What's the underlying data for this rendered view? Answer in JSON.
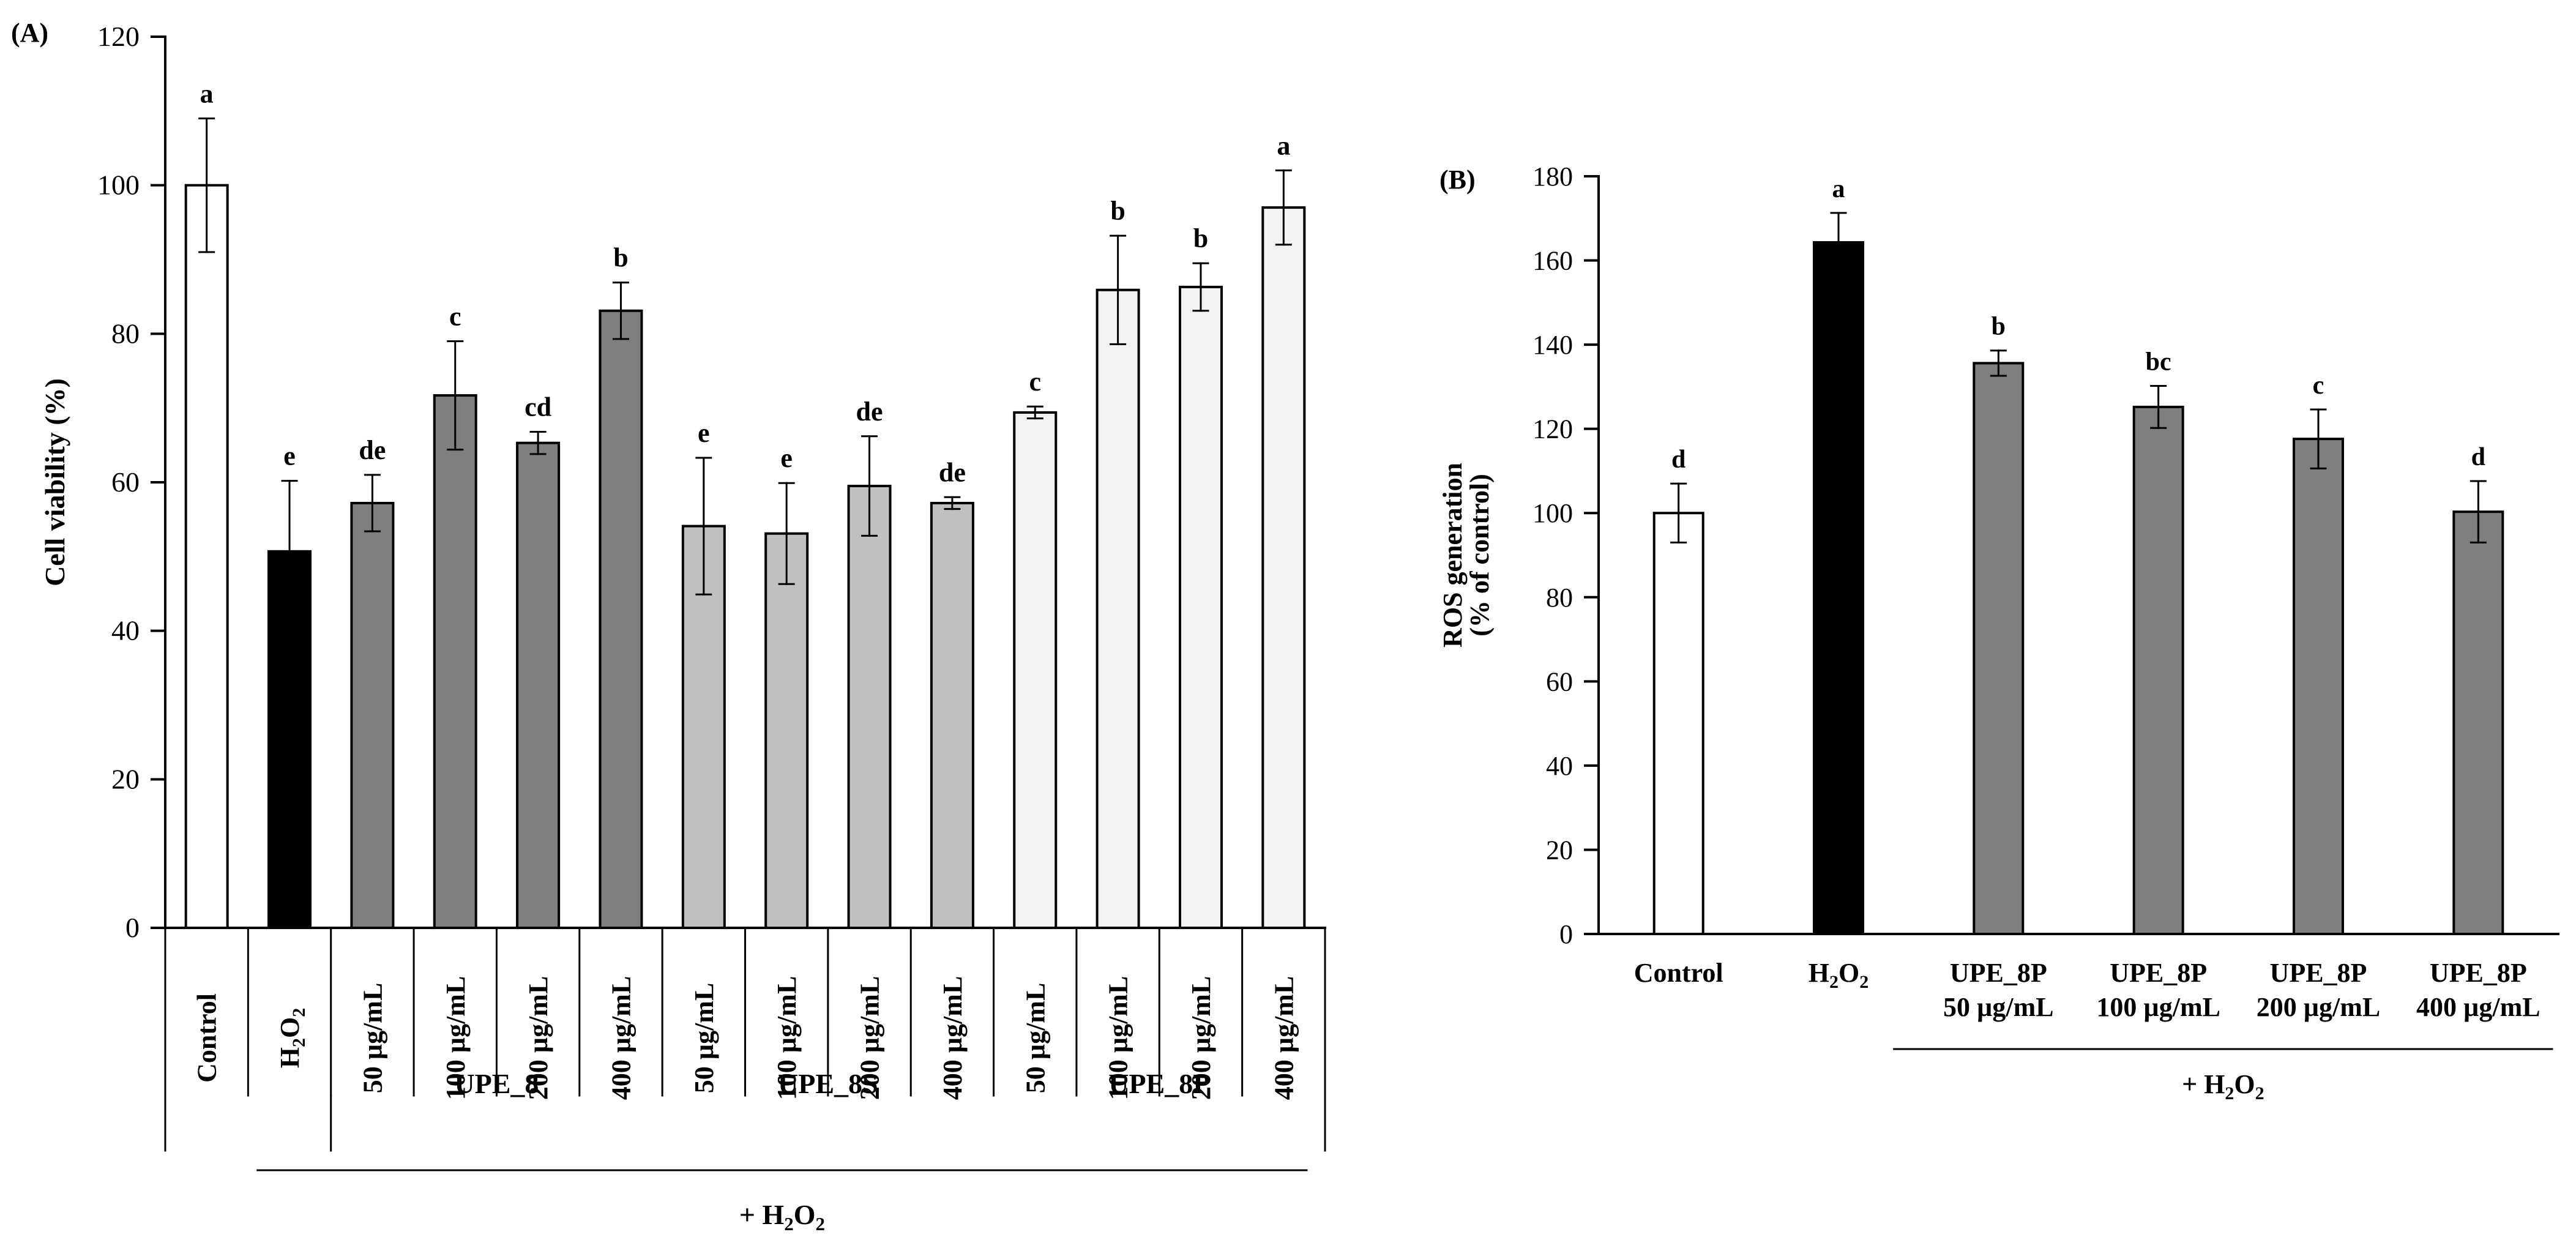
{
  "colors": {
    "white_bar": "#ffffff",
    "black_bar": "#000000",
    "dark_gray_bar": "#7f7f7f",
    "light_gray_bar": "#c0c0c0",
    "very_light_bar": "#f2f2f2",
    "axis": "#000000"
  },
  "chart_data": [
    {
      "id": "A",
      "type": "bar",
      "panel_label": "(A)",
      "ylabel": "Cell viability (%)",
      "ylim": [
        0,
        120
      ],
      "yticks": [
        "0",
        "20",
        "40",
        "60",
        "80",
        "100",
        "120"
      ],
      "grid": false,
      "bars": [
        {
          "label": "Control",
          "value": 100.0,
          "error": 9.0,
          "letter": "a",
          "fill": "white_bar"
        },
        {
          "label": "H2O2",
          "value": 50.7,
          "error": 9.5,
          "letter": "e",
          "fill": "black_bar"
        },
        {
          "label": "50 µg/mL",
          "value": 57.2,
          "error": 3.8,
          "letter": "de",
          "fill": "dark_gray_bar"
        },
        {
          "label": "100 µg/mL",
          "value": 71.7,
          "error": 7.3,
          "letter": "c",
          "fill": "dark_gray_bar"
        },
        {
          "label": "200 µg/mL",
          "value": 65.3,
          "error": 1.5,
          "letter": "cd",
          "fill": "dark_gray_bar"
        },
        {
          "label": "400 µg/mL",
          "value": 83.1,
          "error": 3.8,
          "letter": "b",
          "fill": "dark_gray_bar"
        },
        {
          "label": "50 µg/mL",
          "value": 54.1,
          "error": 9.2,
          "letter": "e",
          "fill": "light_gray_bar"
        },
        {
          "label": "100 µg/mL",
          "value": 53.1,
          "error": 6.8,
          "letter": "e",
          "fill": "light_gray_bar"
        },
        {
          "label": "200 µg/mL",
          "value": 59.5,
          "error": 6.7,
          "letter": "de",
          "fill": "light_gray_bar"
        },
        {
          "label": "400 µg/mL",
          "value": 57.2,
          "error": 0.8,
          "letter": "de",
          "fill": "light_gray_bar"
        },
        {
          "label": "50 µg/mL",
          "value": 69.4,
          "error": 0.8,
          "letter": "c",
          "fill": "very_light_bar"
        },
        {
          "label": "100 µg/mL",
          "value": 85.9,
          "error": 7.3,
          "letter": "b",
          "fill": "very_light_bar"
        },
        {
          "label": "200 µg/mL",
          "value": 86.3,
          "error": 3.2,
          "letter": "b",
          "fill": "very_light_bar"
        },
        {
          "label": "400 µg/mL",
          "value": 97.0,
          "error": 5.0,
          "letter": "a",
          "fill": "very_light_bar"
        }
      ],
      "groups": [
        {
          "name": "UPE_8",
          "from": 2,
          "to": 5
        },
        {
          "name": "UPE_8S",
          "from": 6,
          "to": 9
        },
        {
          "name": "UPE_8P",
          "from": 10,
          "to": 13
        }
      ],
      "treatment_label": "+ H2O2"
    },
    {
      "id": "B",
      "type": "bar",
      "panel_label": "(B)",
      "ylabel_lines": [
        "ROS generation",
        "(% of control)"
      ],
      "ylim": [
        0,
        180
      ],
      "yticks": [
        "0",
        "20",
        "40",
        "60",
        "80",
        "100",
        "120",
        "140",
        "160",
        "180"
      ],
      "grid": false,
      "bars": [
        {
          "label_lines": [
            "Control"
          ],
          "value": 100.0,
          "error": 7.0,
          "letter": "d",
          "fill": "white_bar"
        },
        {
          "label_lines": [
            "H2O2"
          ],
          "value": 164.3,
          "error": 7.0,
          "letter": "a",
          "fill": "black_bar"
        },
        {
          "label_lines": [
            "UPE_8P",
            "50 µg/mL"
          ],
          "value": 135.6,
          "error": 3.0,
          "letter": "b",
          "fill": "dark_gray_bar"
        },
        {
          "label_lines": [
            "UPE_8P",
            "100 µg/mL"
          ],
          "value": 125.2,
          "error": 5.0,
          "letter": "bc",
          "fill": "dark_gray_bar"
        },
        {
          "label_lines": [
            "UPE_8P",
            "200 µg/mL"
          ],
          "value": 117.6,
          "error": 7.0,
          "letter": "c",
          "fill": "dark_gray_bar"
        },
        {
          "label_lines": [
            "UPE_8P",
            "400 µg/mL"
          ],
          "value": 100.3,
          "error": 7.3,
          "letter": "d",
          "fill": "dark_gray_bar"
        }
      ],
      "treatment_label": "+ H2O2"
    }
  ]
}
